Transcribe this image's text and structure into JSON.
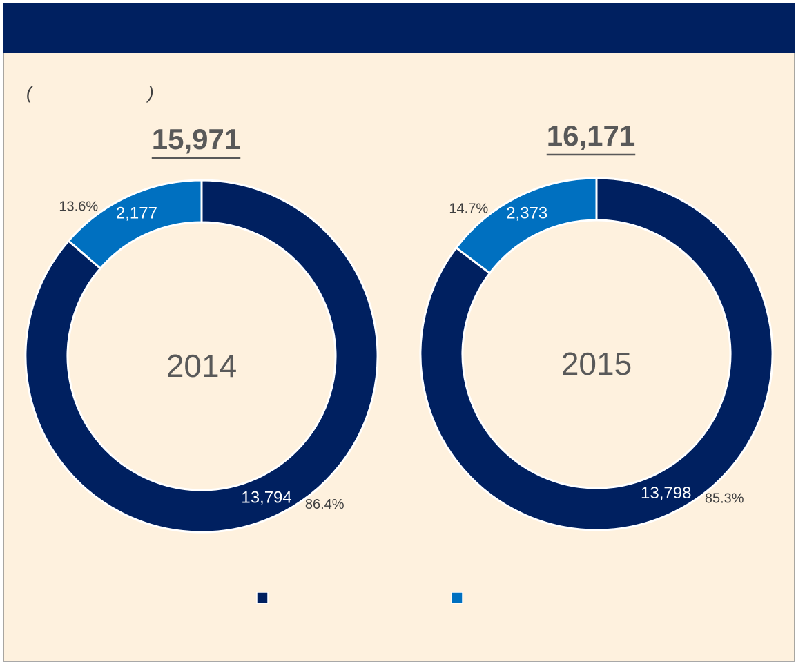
{
  "note": {
    "open": "(",
    "close": ")"
  },
  "chart_data": [
    {
      "type": "donut",
      "title": "2014",
      "total_label": "15,971",
      "values": [
        13794,
        2177
      ],
      "value_labels": [
        "13,794",
        "2,177"
      ],
      "percent_labels": [
        "86.4%",
        "13.6%"
      ],
      "colors": [
        "#002060",
        "#0070c0"
      ]
    },
    {
      "type": "donut",
      "title": "2015",
      "total_label": "16,171",
      "values": [
        13798,
        2373
      ],
      "value_labels": [
        "13,798",
        "2,373"
      ],
      "percent_labels": [
        "85.3%",
        "14.7%"
      ],
      "colors": [
        "#002060",
        "#0070c0"
      ]
    }
  ]
}
